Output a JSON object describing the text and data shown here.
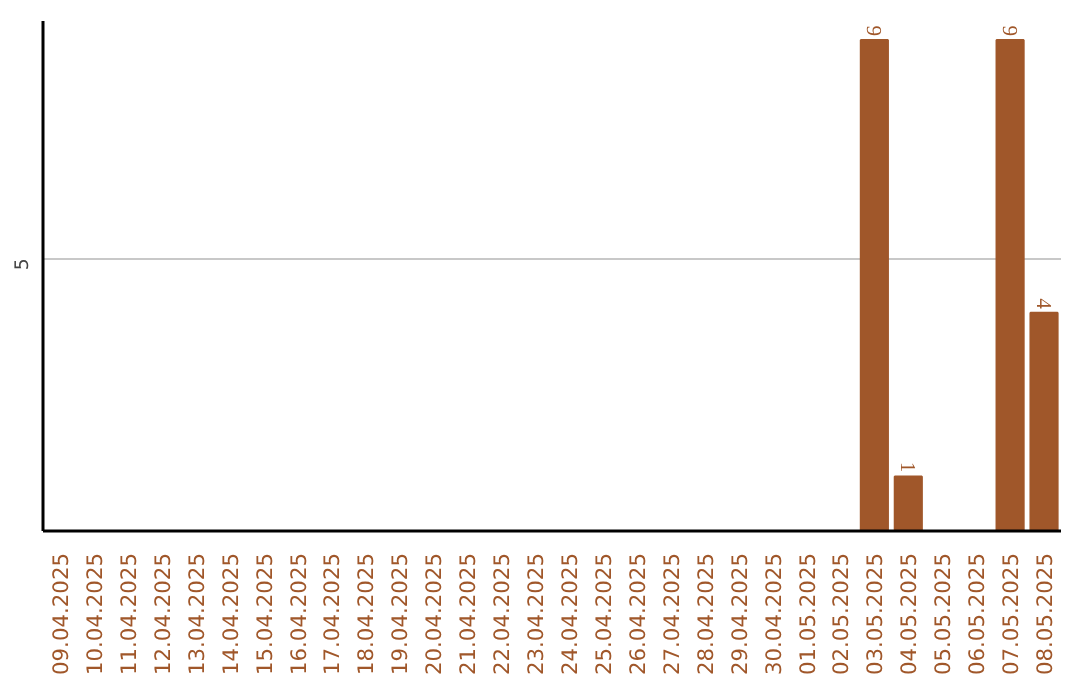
{
  "chart_data": {
    "type": "bar",
    "categories": [
      "09.04.2025",
      "10.04.2025",
      "11.04.2025",
      "12.04.2025",
      "13.04.2025",
      "14.04.2025",
      "15.04.2025",
      "16.04.2025",
      "17.04.2025",
      "18.04.2025",
      "19.04.2025",
      "20.04.2025",
      "21.04.2025",
      "22.04.2025",
      "23.04.2025",
      "24.04.2025",
      "25.04.2025",
      "26.04.2025",
      "27.04.2025",
      "28.04.2025",
      "29.04.2025",
      "30.04.2025",
      "01.05.2025",
      "02.05.2025",
      "03.05.2025",
      "04.05.2025",
      "05.05.2025",
      "06.05.2025",
      "07.05.2025",
      "08.05.2025"
    ],
    "values": [
      null,
      null,
      null,
      null,
      null,
      null,
      null,
      null,
      null,
      null,
      null,
      null,
      null,
      null,
      null,
      null,
      null,
      null,
      null,
      null,
      null,
      null,
      null,
      null,
      9,
      1,
      null,
      null,
      9,
      4
    ],
    "color": "#a0572a",
    "ylim": [
      0,
      9.35
    ],
    "yticks": [
      5
    ],
    "grid": "y",
    "data_labels": true
  }
}
